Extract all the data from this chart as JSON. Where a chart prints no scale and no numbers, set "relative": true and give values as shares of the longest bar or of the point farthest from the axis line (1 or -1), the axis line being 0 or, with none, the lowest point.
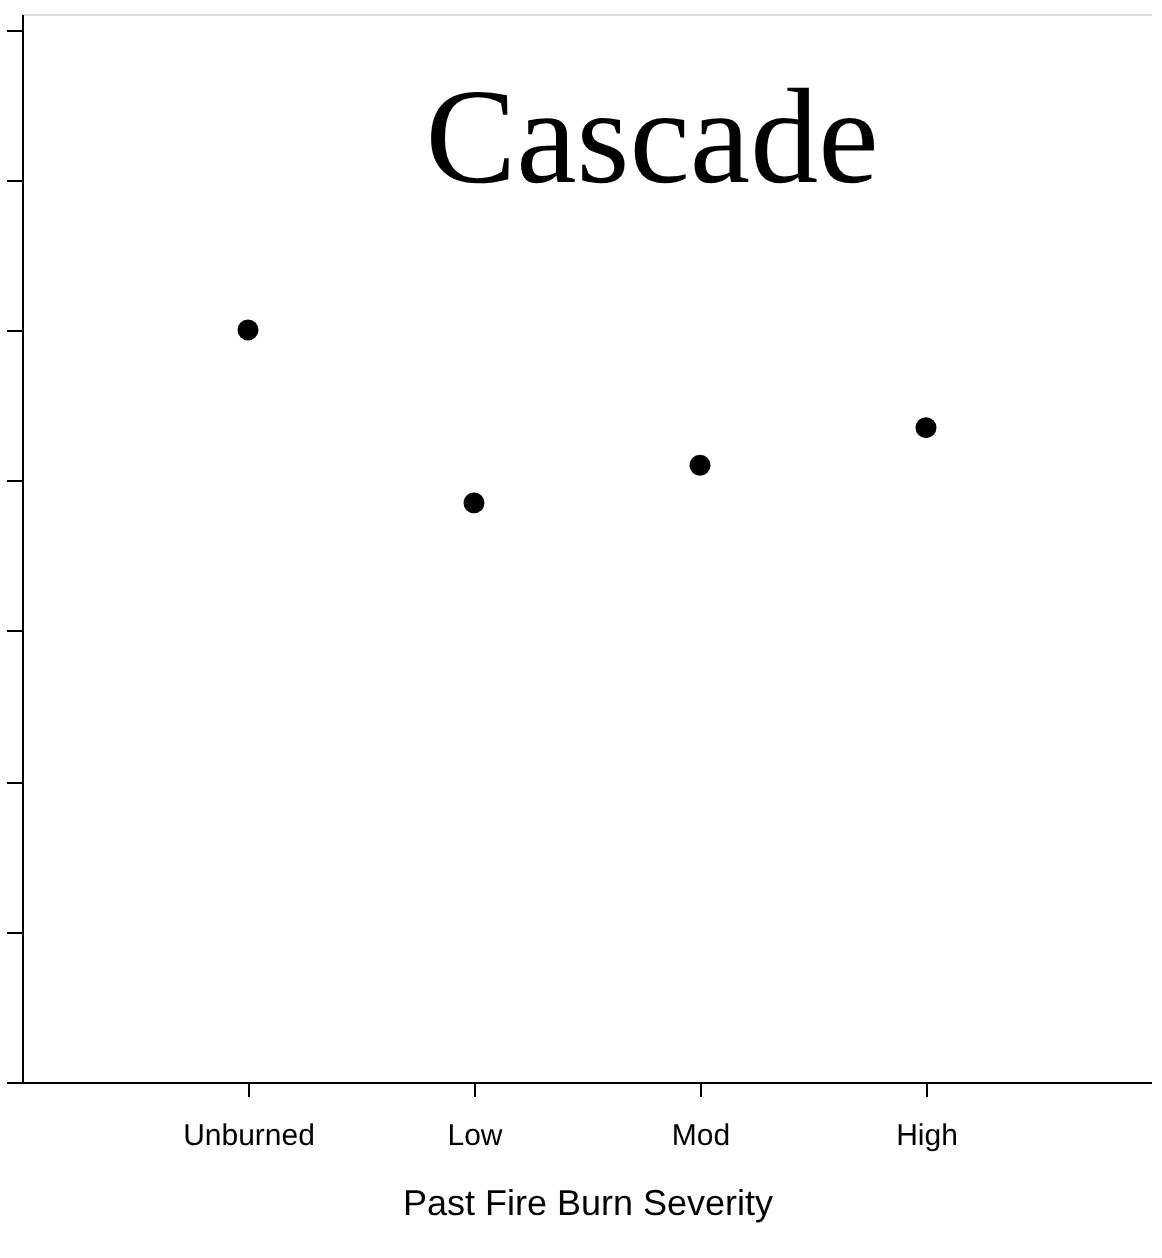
{
  "chart_data": {
    "type": "scatter",
    "title": "Cascade",
    "xlabel": "Past Fire Burn Severity",
    "categories": [
      "Unburned",
      "Low",
      "Mod",
      "High"
    ],
    "series": [
      {
        "color": "#000000",
        "values": [
          1,
          0.77,
          0.82,
          0.87
        ]
      }
    ],
    "relative": true,
    "marker": "circle"
  }
}
